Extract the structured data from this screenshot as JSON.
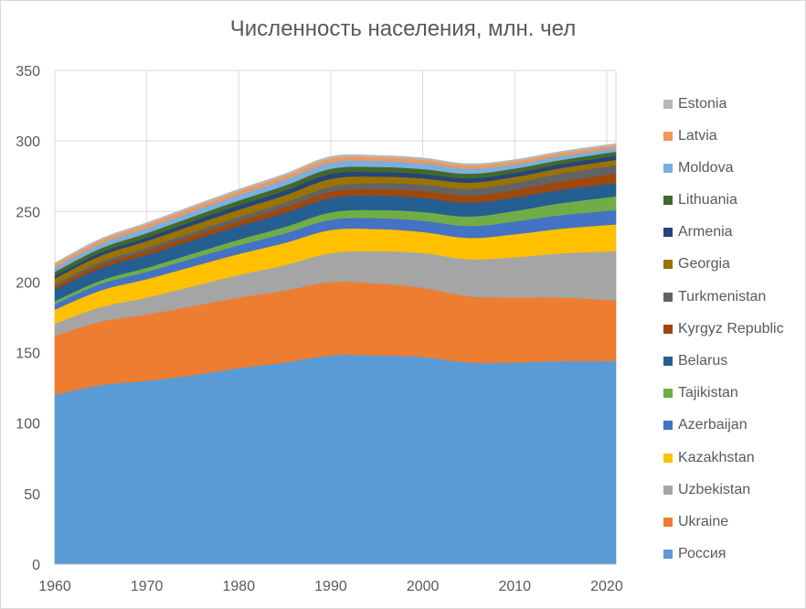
{
  "chart_data": {
    "type": "area",
    "title": "Численность населения, млн. чел",
    "xlabel": "",
    "ylabel": "",
    "x": [
      1960,
      1965,
      1970,
      1975,
      1980,
      1985,
      1990,
      1995,
      2000,
      2005,
      2010,
      2015,
      2021
    ],
    "xlim": [
      1960,
      2021
    ],
    "xticks": [
      1960,
      1970,
      1980,
      1990,
      2000,
      2010,
      2020
    ],
    "ylim": [
      0,
      350
    ],
    "yticks": [
      0,
      50,
      100,
      150,
      200,
      250,
      300,
      350
    ],
    "grid": "vertical and horizontal",
    "legend_position": "right",
    "series": [
      {
        "name": "Россия",
        "color": "#5B9BD5",
        "values": [
          120,
          127,
          130,
          134,
          139,
          143,
          148,
          148,
          147,
          143,
          143,
          144,
          144
        ]
      },
      {
        "name": "Ukraine",
        "color": "#ED7D31",
        "values": [
          42,
          45,
          47,
          49,
          50,
          51,
          52,
          51,
          49,
          47,
          46,
          45,
          43
        ]
      },
      {
        "name": "Uzbekistan",
        "color": "#A5A5A5",
        "values": [
          8.6,
          10.2,
          12,
          14,
          16,
          18,
          20.5,
          22.8,
          24.6,
          26.2,
          28.6,
          31.3,
          34.9
        ]
      },
      {
        "name": "Kazakhstan",
        "color": "#FFC000",
        "values": [
          9.9,
          11.9,
          13.1,
          14.1,
          14.9,
          15.8,
          16.4,
          15.8,
          14.9,
          15.1,
          16.3,
          17.5,
          19
        ]
      },
      {
        "name": "Azerbaijan",
        "color": "#4472C4",
        "values": [
          3.9,
          4.6,
          5.2,
          5.7,
          6.2,
          6.7,
          7.2,
          7.7,
          8,
          8.4,
          9,
          9.6,
          10.1
        ]
      },
      {
        "name": "Tajikistan",
        "color": "#70AD47",
        "values": [
          2.1,
          2.5,
          2.9,
          3.4,
          4,
          4.6,
          5.3,
          5.8,
          6.2,
          6.8,
          7.5,
          8.5,
          9.8
        ]
      },
      {
        "name": "Belarus",
        "color": "#255E91",
        "values": [
          8.2,
          8.6,
          9,
          9.4,
          9.6,
          9.9,
          10.2,
          10.2,
          10,
          9.7,
          9.5,
          9.5,
          9.3
        ]
      },
      {
        "name": "Kyrgyz Republic",
        "color": "#9E480E",
        "values": [
          2.2,
          2.6,
          3,
          3.3,
          3.6,
          4,
          4.4,
          4.6,
          4.9,
          5.1,
          5.4,
          6,
          6.7
        ]
      },
      {
        "name": "Turkmenistan",
        "color": "#636363",
        "values": [
          1.6,
          1.9,
          2.2,
          2.5,
          2.9,
          3.2,
          3.7,
          4.2,
          4.5,
          4.8,
          5.1,
          5.6,
          6.1
        ]
      },
      {
        "name": "Georgia",
        "color": "#997300",
        "values": [
          4.1,
          4.4,
          4.7,
          4.9,
          5.1,
          5.3,
          5.4,
          4.7,
          4.4,
          4.4,
          4.1,
          3.7,
          3.7
        ]
      },
      {
        "name": "Armenia",
        "color": "#264478",
        "values": [
          1.9,
          2.2,
          2.5,
          2.8,
          3.1,
          3.3,
          3.5,
          3.2,
          3.1,
          3,
          2.9,
          2.9,
          3
        ]
      },
      {
        "name": "Lithuania",
        "color": "#43682B",
        "values": [
          2.8,
          3,
          3.1,
          3.3,
          3.4,
          3.6,
          3.7,
          3.6,
          3.5,
          3.3,
          3.1,
          2.9,
          2.8
        ]
      },
      {
        "name": "Moldova",
        "color": "#7CAFDD",
        "values": [
          3,
          3.3,
          3.6,
          3.8,
          4,
          4.2,
          4.4,
          4.3,
          4.1,
          3.6,
          2.9,
          2.8,
          2.6
        ]
      },
      {
        "name": "Latvia",
        "color": "#F1975A",
        "values": [
          2.1,
          2.3,
          2.4,
          2.5,
          2.5,
          2.6,
          2.7,
          2.5,
          2.4,
          2.2,
          2.1,
          2,
          1.9
        ]
      },
      {
        "name": "Estonia",
        "color": "#B7B7B7",
        "values": [
          1.2,
          1.3,
          1.4,
          1.4,
          1.5,
          1.5,
          1.6,
          1.4,
          1.4,
          1.3,
          1.3,
          1.3,
          1.3
        ]
      }
    ]
  }
}
